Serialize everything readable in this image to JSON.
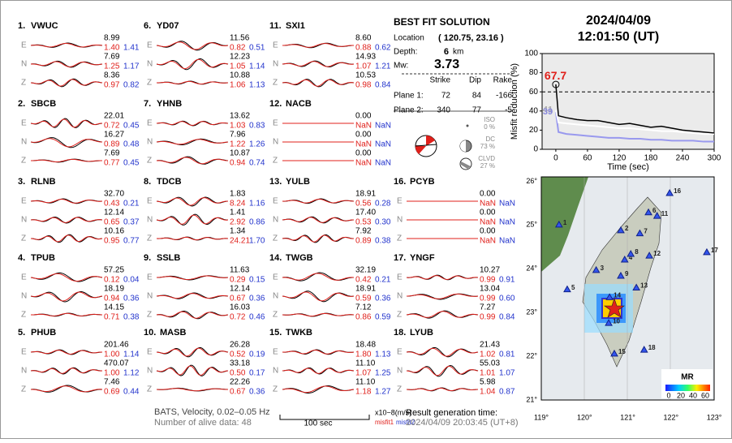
{
  "header": {
    "date": "2024/04/09",
    "time": "12:01:50  (UT)"
  },
  "stations": [
    {
      "id": "1.",
      "name": "VWUC",
      "components": [
        {
          "comp": "E",
          "amp": "8.99",
          "misfit1": "1.40",
          "misfit2": "1.41"
        },
        {
          "comp": "N",
          "amp": "7.69",
          "misfit1": "1.25",
          "misfit2": "1.17"
        },
        {
          "comp": "Z",
          "amp": "8.36",
          "misfit1": "0.97",
          "misfit2": "0.82"
        }
      ]
    },
    {
      "id": "2.",
      "name": "SBCB",
      "components": [
        {
          "comp": "E",
          "amp": "22.01",
          "misfit1": "0.72",
          "misfit2": "0.45"
        },
        {
          "comp": "N",
          "amp": "16.27",
          "misfit1": "0.89",
          "misfit2": "0.48"
        },
        {
          "comp": "Z",
          "amp": "7.69",
          "misfit1": "0.77",
          "misfit2": "0.45"
        }
      ]
    },
    {
      "id": "3.",
      "name": "RLNB",
      "components": [
        {
          "comp": "E",
          "amp": "32.70",
          "misfit1": "0.43",
          "misfit2": "0.21"
        },
        {
          "comp": "N",
          "amp": "12.14",
          "misfit1": "0.65",
          "misfit2": "0.37"
        },
        {
          "comp": "Z",
          "amp": "10.16",
          "misfit1": "0.95",
          "misfit2": "0.77"
        }
      ]
    },
    {
      "id": "4.",
      "name": "TPUB",
      "components": [
        {
          "comp": "E",
          "amp": "57.25",
          "misfit1": "0.12",
          "misfit2": "0.04"
        },
        {
          "comp": "N",
          "amp": "18.19",
          "misfit1": "0.94",
          "misfit2": "0.36"
        },
        {
          "comp": "Z",
          "amp": "14.15",
          "misfit1": "0.71",
          "misfit2": "0.38"
        }
      ]
    },
    {
      "id": "5.",
      "name": "PHUB",
      "components": [
        {
          "comp": "E",
          "amp": "201.46",
          "misfit1": "1.00",
          "misfit2": "1.14"
        },
        {
          "comp": "N",
          "amp": "470.07",
          "misfit1": "1.00",
          "misfit2": "1.12"
        },
        {
          "comp": "Z",
          "amp": "7.46",
          "misfit1": "0.69",
          "misfit2": "0.44"
        }
      ]
    },
    {
      "id": "6.",
      "name": "YD07",
      "components": [
        {
          "comp": "E",
          "amp": "11.56",
          "misfit1": "0.82",
          "misfit2": "0.51"
        },
        {
          "comp": "N",
          "amp": "12.23",
          "misfit1": "1.05",
          "misfit2": "1.14"
        },
        {
          "comp": "Z",
          "amp": "10.88",
          "misfit1": "1.06",
          "misfit2": "1.13"
        }
      ]
    },
    {
      "id": "7.",
      "name": "YHNB",
      "components": [
        {
          "comp": "E",
          "amp": "13.62",
          "misfit1": "1.03",
          "misfit2": "0.83"
        },
        {
          "comp": "N",
          "amp": "7.96",
          "misfit1": "1.22",
          "misfit2": "1.26"
        },
        {
          "comp": "Z",
          "amp": "10.87",
          "misfit1": "0.94",
          "misfit2": "0.74"
        }
      ]
    },
    {
      "id": "8.",
      "name": "TDCB",
      "components": [
        {
          "comp": "E",
          "amp": "1.83",
          "misfit1": "8.24",
          "misfit2": "1.16"
        },
        {
          "comp": "N",
          "amp": "1.41",
          "misfit1": "2.92",
          "misfit2": "0.86"
        },
        {
          "comp": "Z",
          "amp": "1.34",
          "misfit1": "24.21",
          "misfit2": "1.70"
        }
      ]
    },
    {
      "id": "9.",
      "name": "SSLB",
      "components": [
        {
          "comp": "E",
          "amp": "11.63",
          "misfit1": "0.29",
          "misfit2": "0.15"
        },
        {
          "comp": "N",
          "amp": "12.14",
          "misfit1": "0.67",
          "misfit2": "0.36"
        },
        {
          "comp": "Z",
          "amp": "16.03",
          "misfit1": "0.72",
          "misfit2": "0.46"
        }
      ]
    },
    {
      "id": "10.",
      "name": "MASB",
      "components": [
        {
          "comp": "E",
          "amp": "26.28",
          "misfit1": "0.52",
          "misfit2": "0.19"
        },
        {
          "comp": "N",
          "amp": "33.18",
          "misfit1": "0.50",
          "misfit2": "0.17"
        },
        {
          "comp": "Z",
          "amp": "22.26",
          "misfit1": "0.67",
          "misfit2": "0.36"
        }
      ]
    },
    {
      "id": "11.",
      "name": "SXI1",
      "components": [
        {
          "comp": "E",
          "amp": "8.60",
          "misfit1": "0.88",
          "misfit2": "0.62"
        },
        {
          "comp": "N",
          "amp": "14.93",
          "misfit1": "1.07",
          "misfit2": "1.21"
        },
        {
          "comp": "Z",
          "amp": "10.53",
          "misfit1": "0.98",
          "misfit2": "0.84"
        }
      ]
    },
    {
      "id": "12.",
      "name": "NACB",
      "components": [
        {
          "comp": "E",
          "amp": "0.00",
          "misfit1": "NaN",
          "misfit2": "NaN"
        },
        {
          "comp": "N",
          "amp": "0.00",
          "misfit1": "NaN",
          "misfit2": "NaN"
        },
        {
          "comp": "Z",
          "amp": "0.00",
          "misfit1": "NaN",
          "misfit2": "NaN"
        }
      ]
    },
    {
      "id": "13.",
      "name": "YULB",
      "components": [
        {
          "comp": "E",
          "amp": "18.91",
          "misfit1": "0.56",
          "misfit2": "0.28"
        },
        {
          "comp": "N",
          "amp": "17.40",
          "misfit1": "0.53",
          "misfit2": "0.30"
        },
        {
          "comp": "Z",
          "amp": "7.92",
          "misfit1": "0.89",
          "misfit2": "0.38"
        }
      ]
    },
    {
      "id": "14.",
      "name": "TWGB",
      "components": [
        {
          "comp": "E",
          "amp": "32.19",
          "misfit1": "0.42",
          "misfit2": "0.21"
        },
        {
          "comp": "N",
          "amp": "18.91",
          "misfit1": "0.59",
          "misfit2": "0.36"
        },
        {
          "comp": "Z",
          "amp": "7.12",
          "misfit1": "0.86",
          "misfit2": "0.59"
        }
      ]
    },
    {
      "id": "15.",
      "name": "TWKB",
      "components": [
        {
          "comp": "E",
          "amp": "18.48",
          "misfit1": "1.80",
          "misfit2": "1.13"
        },
        {
          "comp": "N",
          "amp": "11.10",
          "misfit1": "1.07",
          "misfit2": "1.25"
        },
        {
          "comp": "Z",
          "amp": "11.10",
          "misfit1": "1.18",
          "misfit2": "1.27"
        }
      ]
    },
    {
      "id": "16.",
      "name": "PCYB",
      "components": [
        {
          "comp": "E",
          "amp": "0.00",
          "misfit1": "NaN",
          "misfit2": "NaN"
        },
        {
          "comp": "N",
          "amp": "0.00",
          "misfit1": "NaN",
          "misfit2": "NaN"
        },
        {
          "comp": "Z",
          "amp": "0.00",
          "misfit1": "NaN",
          "misfit2": "NaN"
        }
      ]
    },
    {
      "id": "17.",
      "name": "YNGF",
      "components": [
        {
          "comp": "E",
          "amp": "10.27",
          "misfit1": "0.99",
          "misfit2": "0.91"
        },
        {
          "comp": "N",
          "amp": "13.04",
          "misfit1": "0.99",
          "misfit2": "0.60"
        },
        {
          "comp": "Z",
          "amp": "7.27",
          "misfit1": "0.99",
          "misfit2": "0.84"
        }
      ]
    },
    {
      "id": "18.",
      "name": "LYUB",
      "components": [
        {
          "comp": "E",
          "amp": "21.43",
          "misfit1": "1.02",
          "misfit2": "0.81"
        },
        {
          "comp": "N",
          "amp": "55.03",
          "misfit1": "1.01",
          "misfit2": "1.07"
        },
        {
          "comp": "Z",
          "amp": "5.98",
          "misfit1": "1.04",
          "misfit2": "0.87"
        }
      ]
    }
  ],
  "solution": {
    "title": "BEST FIT SOLUTION",
    "location_label": "Location",
    "location": "( 120.75, 23.16 )",
    "depth_label": "Depth:",
    "depth": "6",
    "depth_unit": "km",
    "mw_label": "Mw:",
    "mw": "3.73",
    "plane_headers": [
      "Strike",
      "Dip",
      "Rake"
    ],
    "planes": [
      {
        "label": "Plane 1:",
        "values": [
          "72",
          "84",
          "-166"
        ]
      },
      {
        "label": "Plane 2:",
        "values": [
          "340",
          "77",
          "-5"
        ]
      }
    ],
    "components": [
      {
        "name": "ISO",
        "percent": "0 %"
      },
      {
        "name": "DC",
        "percent": "73 %"
      },
      {
        "name": "CLVD",
        "percent": "27 %"
      }
    ]
  },
  "chart_data": {
    "type": "line",
    "xlabel": "Time (sec)",
    "ylabel": "Misfit reduction (%)",
    "x": [
      0,
      5,
      20,
      40,
      60,
      80,
      100,
      120,
      140,
      160,
      180,
      200,
      220,
      240,
      260,
      280,
      300
    ],
    "series": [
      {
        "color": "#000000",
        "start_label": "67.7",
        "label_color": "#e0201b",
        "values": [
          67.7,
          35,
          33,
          31,
          30,
          30,
          28,
          26,
          27,
          25,
          23,
          24,
          22,
          20,
          19,
          18,
          17
        ]
      },
      {
        "color": "#ffffff",
        "start_label": "41",
        "label_color": "#aaaaaa",
        "values": [
          41,
          28,
          27,
          26,
          25,
          24,
          23,
          22,
          22,
          21,
          20,
          19,
          19,
          18,
          17,
          16,
          16
        ]
      },
      {
        "color": "#9999ee",
        "start_label": "39",
        "label_color": "#8888dd",
        "values": [
          39,
          18,
          16,
          15,
          14,
          13,
          12,
          12,
          11,
          11,
          10,
          10,
          9,
          9,
          9,
          8,
          8
        ]
      }
    ],
    "xlim": [
      -26,
      300
    ],
    "ylim": [
      0,
      100
    ],
    "xticks": [
      0,
      60,
      120,
      180,
      240,
      300
    ],
    "yticks": [
      0,
      20,
      40,
      60,
      80,
      100
    ],
    "reference_line": 60
  },
  "map": {
    "xlim": [
      119,
      123
    ],
    "ylim": [
      21,
      26.1
    ],
    "xticks": [
      {
        "value": 119,
        "label": "119°"
      },
      {
        "value": 120,
        "label": "120°"
      },
      {
        "value": 121,
        "label": "121°"
      },
      {
        "value": 122,
        "label": "122°"
      },
      {
        "value": 123,
        "label": "123°"
      }
    ],
    "yticks": [
      {
        "value": 21,
        "label": "21°"
      },
      {
        "value": 22,
        "label": "22°"
      },
      {
        "value": 23,
        "label": "23°"
      },
      {
        "value": 24,
        "label": "24°"
      },
      {
        "value": 25,
        "label": "25°"
      },
      {
        "value": 26,
        "label": "26°"
      }
    ],
    "stations": [
      {
        "label": "1",
        "lon": 119.41,
        "lat": 24.99
      },
      {
        "label": "2",
        "lon": 120.84,
        "lat": 24.86
      },
      {
        "label": "3",
        "lon": 120.27,
        "lat": 23.95
      },
      {
        "label": "4",
        "lon": 120.93,
        "lat": 24.19
      },
      {
        "label": "5",
        "lon": 119.6,
        "lat": 23.51
      },
      {
        "label": "6",
        "lon": 121.48,
        "lat": 25.27
      },
      {
        "label": "7",
        "lon": 121.28,
        "lat": 24.79
      },
      {
        "label": "8",
        "lon": 121.07,
        "lat": 24.32
      },
      {
        "label": "9",
        "lon": 120.84,
        "lat": 23.82
      },
      {
        "label": "10",
        "lon": 120.56,
        "lat": 22.74
      },
      {
        "label": "11",
        "lon": 121.68,
        "lat": 25.19
      },
      {
        "label": "12",
        "lon": 121.5,
        "lat": 24.28
      },
      {
        "label": "13",
        "lon": 121.2,
        "lat": 23.55
      },
      {
        "label": "14",
        "lon": 120.58,
        "lat": 23.33
      },
      {
        "label": "15",
        "lon": 120.69,
        "lat": 22.04
      },
      {
        "label": "16",
        "lon": 121.97,
        "lat": 25.71
      },
      {
        "label": "17",
        "lon": 122.83,
        "lat": 24.36
      },
      {
        "label": "18",
        "lon": 121.38,
        "lat": 22.13
      }
    ],
    "colorbar_title": "MR",
    "colorbar_labels": [
      "0",
      "20",
      "40",
      "60"
    ]
  },
  "footer": {
    "filter": "BATS, Velocity, 0.02–0.05 Hz",
    "alive": "Number of alive data: 48",
    "scale": "100 sec",
    "units": "x10−8(m/s)",
    "misfit1": "misfit1",
    "misfit2": "misfit2",
    "generated_label": "Result generation time:",
    "generated": "2024/04/09 20:03:45  (UT+8)"
  }
}
